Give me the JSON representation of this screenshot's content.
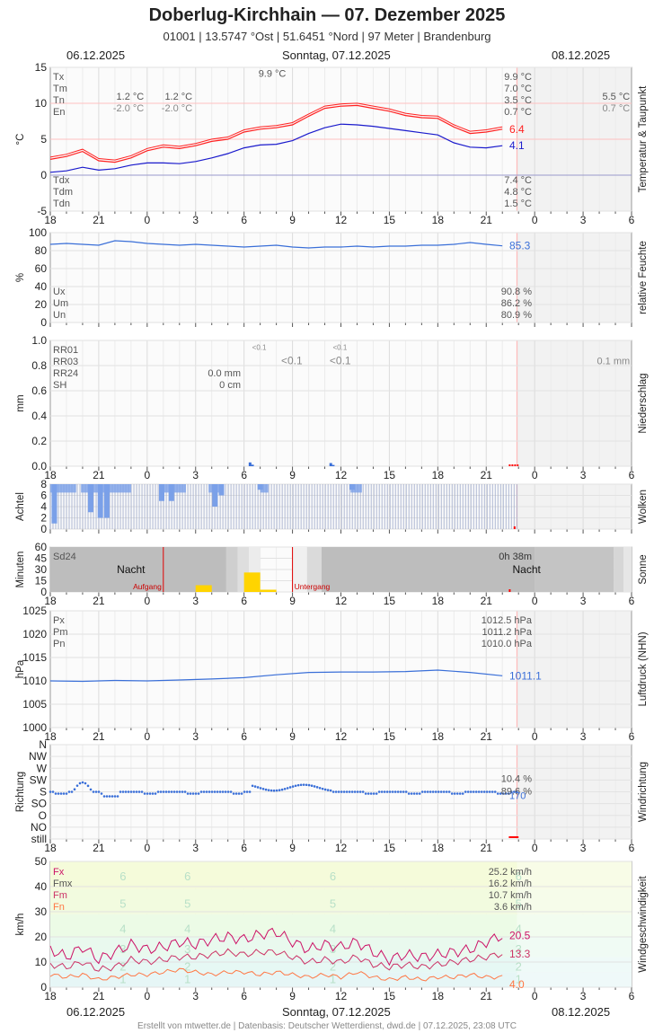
{
  "header": {
    "title": "Doberlug-Kirchhain  —  07. Dezember 2025",
    "subtitle": "01001  |  13.5747 °Ost  |  51.6451 °Nord  |  97 Meter  |  Brandenburg"
  },
  "dates": {
    "left": "06.12.2025",
    "center": "Sonntag, 07.12.2025",
    "right": "08.12.2025"
  },
  "x_tick_labels": [
    "18",
    "21",
    "0",
    "3",
    "6",
    "9",
    "12",
    "15",
    "18",
    "21",
    "0",
    "3",
    "6"
  ],
  "footer": "Erstellt von mtwetter.de | Datenbasis: Deutscher Wetterdienst, dwd.de | 07.12.2025, 23:08 UTC",
  "colors": {
    "temp": "#ff2020",
    "dew": "#1a1acc",
    "blue": "#3a6fd8",
    "sun": "#ffd400",
    "night": "#bdbdbd",
    "wind_fx": "#cc1166",
    "wind_fm": "#cc3366",
    "wind_fn": "#ff7744"
  },
  "chart_data": [
    {
      "type": "line",
      "panel": "Temperatur & Taupunkt",
      "ylabel": "°C",
      "ylim": [
        -5,
        15
      ],
      "yticks": [
        -5,
        0,
        5,
        10,
        15
      ],
      "x_hours": "hours since 06.12.2025 18:00, 0..36",
      "series": [
        {
          "name": "Temperatur",
          "color": "#ff2020",
          "x": [
            0,
            1,
            2,
            3,
            4,
            5,
            6,
            7,
            8,
            9,
            10,
            11,
            12,
            13,
            14,
            15,
            16,
            17,
            18,
            19,
            20,
            21,
            22,
            23,
            24,
            25,
            26,
            27,
            28
          ],
          "values": [
            2.2,
            2.6,
            3.3,
            2.0,
            1.8,
            2.4,
            3.4,
            3.9,
            3.7,
            4.1,
            4.7,
            5.0,
            6.0,
            6.4,
            6.6,
            7.0,
            8.2,
            9.3,
            9.6,
            9.7,
            9.3,
            8.9,
            8.3,
            8.0,
            7.9,
            6.7,
            5.8,
            6.0,
            6.4
          ]
        },
        {
          "name": "Taupunkt",
          "color": "#1a1acc",
          "x": [
            0,
            1,
            2,
            3,
            4,
            5,
            6,
            7,
            8,
            9,
            10,
            11,
            12,
            13,
            14,
            15,
            16,
            17,
            18,
            19,
            20,
            21,
            22,
            23,
            24,
            25,
            26,
            27,
            28
          ],
          "values": [
            0.4,
            0.6,
            1.1,
            0.7,
            0.9,
            1.4,
            1.7,
            1.7,
            1.6,
            1.9,
            2.4,
            3.0,
            3.8,
            4.2,
            4.3,
            4.8,
            5.8,
            6.6,
            7.1,
            7.0,
            6.8,
            6.5,
            6.2,
            5.9,
            5.6,
            4.5,
            3.9,
            3.8,
            4.1
          ]
        }
      ],
      "current": {
        "temp": "6.4",
        "dew": "4.1"
      },
      "legend_top": [
        {
          "label": "Tx",
          "value": "9.9 °C"
        },
        {
          "label": "Tm",
          "value": "7.0 °C"
        },
        {
          "label": "Tn",
          "value": "3.5 °C"
        },
        {
          "label": "En",
          "value": "0.7 °C"
        }
      ],
      "legend_bottom": [
        {
          "label": "Tdx",
          "value": "7.4 °C"
        },
        {
          "label": "Tdm",
          "value": "4.8 °C"
        },
        {
          "label": "Tdn",
          "value": "1.5 °C"
        }
      ],
      "annotations": [
        {
          "text": "9.9 °C",
          "x": 14.6,
          "y": 13.7
        },
        {
          "text": "1.2 °C",
          "x": 5.8,
          "y": 10.5
        },
        {
          "text": "1.2 °C",
          "x": 8.8,
          "y": 10.5
        },
        {
          "text": "-2.0 °C",
          "x": 5.8,
          "y": 8.9
        },
        {
          "text": "-2.0 °C",
          "x": 8.8,
          "y": 8.9
        },
        {
          "text": "5.5 °C",
          "x": 35.9,
          "y": 10.5
        },
        {
          "text": "0.7 °C",
          "x": 35.9,
          "y": 8.9
        }
      ]
    },
    {
      "type": "line",
      "panel": "relative Feuchte",
      "ylabel": "%",
      "ylim": [
        0,
        100
      ],
      "yticks": [
        0,
        20,
        40,
        60,
        80,
        100
      ],
      "series": [
        {
          "name": "relative Feuchte",
          "color": "#3a6fd8",
          "x": [
            0,
            1,
            2,
            3,
            4,
            5,
            6,
            7,
            8,
            9,
            10,
            11,
            12,
            13,
            14,
            15,
            16,
            17,
            18,
            19,
            20,
            21,
            22,
            23,
            24,
            25,
            26,
            27,
            28
          ],
          "values": [
            87,
            88,
            87,
            86,
            91,
            90,
            88,
            87,
            86,
            87,
            86,
            85,
            84,
            85,
            86,
            84,
            83,
            84,
            84,
            85,
            84,
            85,
            85,
            86,
            86,
            87,
            89,
            87,
            85.3
          ]
        }
      ],
      "current": "85.3",
      "legend": [
        {
          "label": "Ux",
          "value": "90.8 %"
        },
        {
          "label": "Um",
          "value": "86.2 %"
        },
        {
          "label": "Un",
          "value": "80.9 %"
        }
      ]
    },
    {
      "type": "bar",
      "panel": "Niederschlag",
      "ylabel": "mm",
      "ylim": [
        0,
        1.0
      ],
      "yticks": [
        0.0,
        0.2,
        0.4,
        0.6,
        0.8,
        1.0
      ],
      "bars": [
        {
          "x": 12.4,
          "value": 0.03
        },
        {
          "x": 12.55,
          "value": 0.012
        },
        {
          "x": 17.4,
          "value": 0.025
        },
        {
          "x": 17.55,
          "value": 0.01
        }
      ],
      "legend": [
        {
          "label": "RR01",
          "value": ""
        },
        {
          "label": "RR03",
          "value": ""
        },
        {
          "label": "RR24",
          "value": "0.0 mm"
        },
        {
          "label": "SH",
          "value": "0 cm"
        }
      ],
      "annotations": [
        {
          "text": "<0.1",
          "x": 12.5,
          "y": 0.925,
          "size": "small"
        },
        {
          "text": "<0.1",
          "x": 17.5,
          "y": 0.925,
          "size": "small"
        },
        {
          "text": "<0.1",
          "x": 14.3,
          "y": 0.81,
          "size": "large"
        },
        {
          "text": "<0.1",
          "x": 17.3,
          "y": 0.81,
          "size": "large"
        },
        {
          "text": "0.1 mm",
          "x": 35.9,
          "y": 0.81,
          "size": "medium"
        }
      ]
    },
    {
      "type": "bar",
      "panel": "Wolken",
      "ylabel": "Achtel",
      "ylim": [
        0,
        8
      ],
      "yticks": [
        0,
        2,
        4,
        6,
        8
      ],
      "hourly_clouds": [
        8,
        8,
        8,
        8,
        8,
        7,
        5,
        7,
        8,
        8,
        7,
        7,
        6,
        8,
        8,
        8,
        8,
        8,
        8,
        8,
        8,
        8,
        8,
        8,
        8,
        8,
        8,
        8,
        8,
        8,
        8
      ],
      "cloud_gaps": [
        {
          "x": 0.25,
          "value": 1
        },
        {
          "x": 2.5,
          "value": 3
        },
        {
          "x": 3.1,
          "value": 2
        },
        {
          "x": 3.5,
          "value": 2
        },
        {
          "x": 6.9,
          "value": 5
        },
        {
          "x": 7.5,
          "value": 5
        },
        {
          "x": 10.2,
          "value": 4
        },
        {
          "x": 10.6,
          "value": 6
        },
        {
          "x": 13.0,
          "value": 7
        },
        {
          "x": 18.7,
          "value": 7
        }
      ]
    },
    {
      "type": "bar",
      "panel": "Sonne",
      "ylabel": "Minuten",
      "ylim": [
        0,
        60
      ],
      "yticks": [
        0,
        15,
        30,
        45,
        60
      ],
      "sunrise_x": 7.0,
      "sunset_x": 15.0,
      "labels": {
        "sd24": "Sd24",
        "sd24_value": "0h 38m",
        "night": "Nacht",
        "sunrise": "Aufgang",
        "sunset": "Untergang"
      },
      "sun_minutes": [
        {
          "x": 9.5,
          "value": 9
        },
        {
          "x": 12.5,
          "value": 26
        },
        {
          "x": 13.5,
          "value": 3
        }
      ]
    },
    {
      "type": "line",
      "panel": "Luftdruck (NHN)",
      "ylabel": "hPa",
      "ylim": [
        1000,
        1025
      ],
      "yticks": [
        1000,
        1005,
        1010,
        1015,
        1020,
        1025
      ],
      "series": [
        {
          "name": "Luftdruck",
          "color": "#3a6fd8",
          "x": [
            0,
            2,
            4,
            6,
            8,
            10,
            12,
            14,
            16,
            18,
            20,
            22,
            24,
            26,
            28
          ],
          "values": [
            1010.0,
            1009.9,
            1010.1,
            1010.0,
            1010.2,
            1010.4,
            1010.7,
            1011.3,
            1011.8,
            1011.9,
            1011.9,
            1012.0,
            1012.3,
            1011.8,
            1011.1
          ]
        }
      ],
      "current": "1011.1",
      "legend": [
        {
          "label": "Px",
          "value": "1012.5 hPa"
        },
        {
          "label": "Pm",
          "value": "1011.2 hPa"
        },
        {
          "label": "Pn",
          "value": "1010.0 hPa"
        }
      ]
    },
    {
      "type": "scatter",
      "panel": "Windrichtung",
      "ylabel": "Richtung",
      "ycategories": [
        "still",
        "NO",
        "O",
        "SO",
        "S",
        "SW",
        "W",
        "NW",
        "N"
      ],
      "values_desc": "mostly S (4) with excursions toward SW around hours 1.5-2.5 and 12-18",
      "current": "170",
      "legend_values": [
        "10.4 %",
        "89.6 %"
      ]
    },
    {
      "type": "line",
      "panel": "Windgeschwindigkeit",
      "ylabel": "km/h",
      "ylim": [
        0,
        50
      ],
      "yticks": [
        0,
        10,
        20,
        30,
        40,
        50
      ],
      "beaufort_labels": [
        "1",
        "2",
        "3",
        "4",
        "5",
        "6"
      ],
      "series": [
        {
          "name": "Fx",
          "color": "#cc1166",
          "x": [
            0,
            1,
            2,
            3,
            4,
            5,
            6,
            7,
            8,
            9,
            10,
            11,
            12,
            13,
            14,
            15,
            16,
            17,
            18,
            19,
            20,
            21,
            22,
            23,
            24,
            25,
            26,
            27,
            28
          ],
          "values": [
            15,
            12,
            16,
            11,
            14,
            17,
            15,
            16,
            18,
            17,
            19,
            20,
            19,
            21,
            22,
            18,
            15,
            17,
            16,
            18,
            14,
            11,
            13,
            12,
            13,
            14,
            15,
            18,
            20.5
          ]
        },
        {
          "name": "Fm",
          "color": "#cc3366",
          "x": [
            0,
            1,
            2,
            3,
            4,
            5,
            6,
            7,
            8,
            9,
            10,
            11,
            12,
            13,
            14,
            15,
            16,
            17,
            18,
            19,
            20,
            21,
            22,
            23,
            24,
            25,
            26,
            27,
            28
          ],
          "values": [
            9,
            8,
            10,
            7,
            8,
            11,
            10,
            11,
            12,
            12,
            13,
            14,
            13,
            14,
            14,
            12,
            10,
            11,
            10,
            12,
            9,
            8,
            9,
            8,
            9,
            10,
            11,
            12,
            13.3
          ]
        },
        {
          "name": "Fn",
          "color": "#ff7744",
          "x": [
            0,
            1,
            2,
            3,
            4,
            5,
            6,
            7,
            8,
            9,
            10,
            11,
            12,
            13,
            14,
            15,
            16,
            17,
            18,
            19,
            20,
            21,
            22,
            23,
            24,
            25,
            26,
            27,
            28
          ],
          "values": [
            5,
            4,
            5,
            3,
            4,
            5,
            5,
            6,
            7,
            6,
            5,
            6,
            6,
            5,
            6,
            5,
            4,
            5,
            4,
            6,
            4,
            3,
            4,
            3,
            4,
            4,
            5,
            4,
            4.0
          ]
        }
      ],
      "current": {
        "fx": "20.5",
        "fm": "13.3",
        "fn": "4.0"
      },
      "legend": [
        {
          "label": "Fx",
          "value": "25.2 km/h"
        },
        {
          "label": "Fmx",
          "value": "16.2 km/h"
        },
        {
          "label": "Fm",
          "value": "10.7 km/h"
        },
        {
          "label": "Fn",
          "value": "3.6 km/h"
        }
      ]
    }
  ]
}
